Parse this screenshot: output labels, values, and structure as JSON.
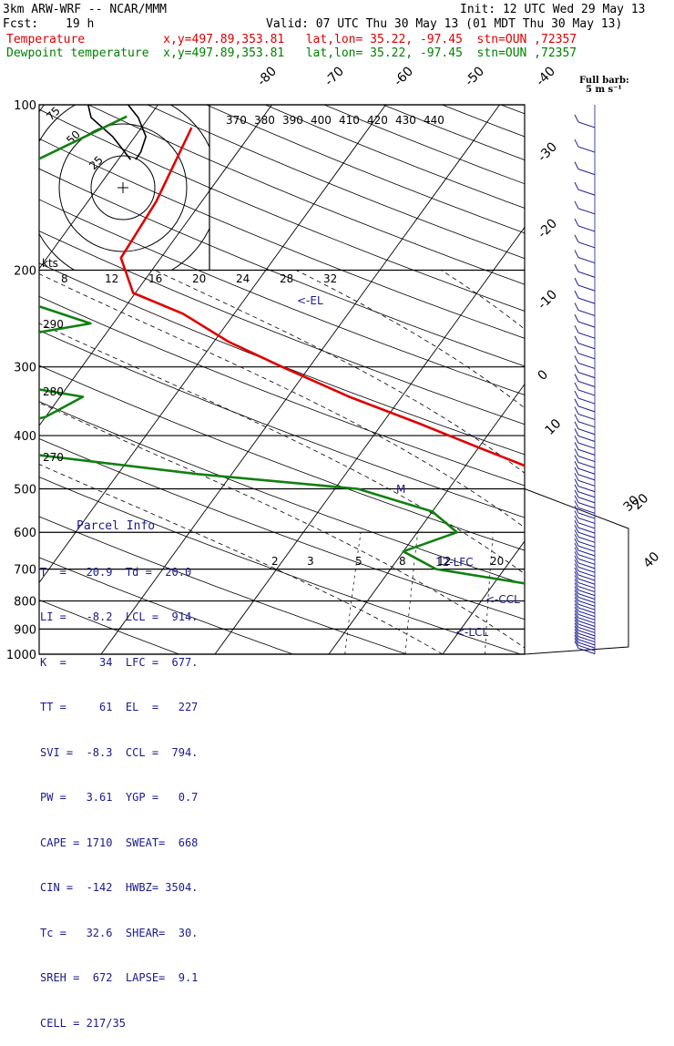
{
  "header": {
    "model": "3km ARW-WRF -- NCAR/MMM",
    "init": "Init: 12 UTC Wed 29 May 13",
    "fcst_label": "Fcst:",
    "fcst_value": "19 h",
    "valid": "Valid: 07 UTC Thu 30 May 13 (01 MDT Thu 30 May 13)",
    "temp_line": "Temperature           x,y=497.89,353.81   lat,lon= 35.22, -97.45  stn=OUN ,72357",
    "dew_line": "Dewpoint temperature  x,y=497.89,353.81   lat,lon= 35.22, -97.45  stn=OUN ,72357"
  },
  "colors": {
    "temperature": "#e00000",
    "dewpoint": "#108010",
    "parcel": "#1a1a8c",
    "wind_barb": "#1a1a8c"
  },
  "barb_label": {
    "line1": "Full barb:",
    "line2": "5 m s⁻¹"
  },
  "chart_data": {
    "type": "line",
    "chart_kind": "skew-T log-p sounding",
    "pressure_levels": [
      100,
      200,
      300,
      400,
      500,
      600,
      700,
      800,
      900,
      1000
    ],
    "pressure_ticks": [
      "100",
      "200",
      "300",
      "400",
      "500",
      "600",
      "700",
      "800",
      "900",
      "1000"
    ],
    "skewed_temp_labels": [
      "-80",
      "-70",
      "-60",
      "-50",
      "-40",
      "-30",
      "-20",
      "-10",
      "0",
      "10",
      "20",
      "30",
      "40"
    ],
    "theta_labels": [
      "370",
      "380",
      "390",
      "400",
      "410",
      "420",
      "430",
      "440"
    ],
    "left_theta_labels": [
      "290",
      "280",
      "270"
    ],
    "mixing_ratio_labels": [
      "2",
      "3",
      "5",
      "8",
      "12",
      "20"
    ],
    "hodograph": {
      "ring_labels": [
        "25",
        "50",
        "75"
      ],
      "speed_axis_label": "kts",
      "speed_ticks": [
        "8",
        "12",
        "16",
        "20",
        "24",
        "28",
        "32"
      ],
      "trace": [
        [
          6,
          22
        ],
        [
          -8,
          40
        ],
        [
          -25,
          55
        ],
        [
          -28,
          68
        ],
        [
          -15,
          72
        ],
        [
          0,
          70
        ],
        [
          12,
          55
        ],
        [
          18,
          40
        ],
        [
          14,
          28
        ],
        [
          10,
          22
        ]
      ]
    },
    "series": [
      {
        "name": "Temperature",
        "p": [
          110,
          150,
          190,
          220,
          240,
          270,
          300,
          340,
          380,
          420,
          470,
          520,
          580,
          640,
          700,
          750,
          800,
          830,
          860,
          900,
          950,
          1000
        ],
        "t": [
          -55.6,
          -54,
          -53.5,
          -50.2,
          -44.5,
          -38.7,
          -32.4,
          -24.6,
          -16.8,
          -10.1,
          -2.4,
          2.1,
          6.3,
          10.4,
          13.3,
          15.0,
          17.5,
          20.4,
          22.3,
          22.0,
          21.0,
          20.9
        ]
      },
      {
        "name": "Dewpoint temperature",
        "p": [
          105,
          130,
          160,
          190,
          200,
          220,
          250,
          280,
          310,
          340,
          370,
          400,
          430,
          470,
          500,
          550,
          600,
          650,
          700,
          750,
          800,
          850,
          900,
          950,
          1000
        ],
        "t": [
          -62,
          -68,
          -75,
          -73,
          -72,
          -62,
          -52,
          -64,
          -61,
          -48,
          -50,
          -56,
          -50,
          -33,
          -18,
          -10,
          -6.5,
          -10,
          -6,
          4,
          10,
          15,
          19,
          19.8,
          20.0
        ]
      }
    ],
    "annotations": [
      {
        "text": "<-EL",
        "p": 227
      },
      {
        "text": "<-CCL",
        "p": 794
      },
      {
        "text": "<-LCL",
        "p": 914
      },
      {
        "text": "12-LFC",
        "p": 677
      },
      {
        "text": "M",
        "p": 500
      }
    ],
    "wind_axis_labels": [
      "30",
      "40"
    ]
  },
  "parcel_info": {
    "title": "Parcel Info",
    "rows": [
      "T  =   20.9  Td =  20.0",
      "LI =   -8.2  LCL =  914.",
      "K  =     34  LFC =  677.",
      "TT =     61  EL  =   227",
      "SVI =  -8.3  CCL =  794.",
      "PW =   3.61  YGP =   0.7",
      "CAPE = 1710  SWEAT=  668",
      "CIN =  -142  HWBZ= 3504.",
      "Tc =   32.6  SHEAR=  30.",
      "SREH =  672  LAPSE=  9.1",
      "CELL = 217/35"
    ]
  }
}
